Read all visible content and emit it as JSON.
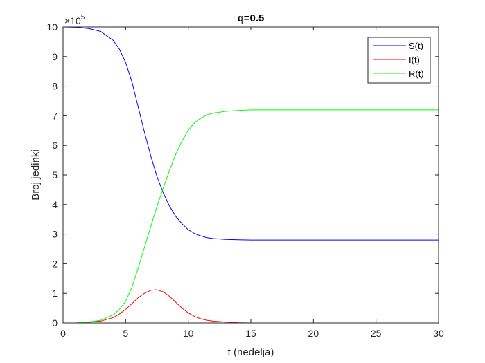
{
  "chart_data": {
    "type": "line",
    "title": "q=0.5",
    "xlabel": "t (nedelja)",
    "ylabel": "Broj jedinki",
    "xlim": [
      0,
      30
    ],
    "ylim": [
      0,
      10
    ],
    "x_ticks": [
      0,
      5,
      10,
      15,
      20,
      25,
      30
    ],
    "y_ticks": [
      0,
      1,
      2,
      3,
      4,
      5,
      6,
      7,
      8,
      9,
      10
    ],
    "y_multiplier_base": "×10",
    "y_multiplier_exponent": "5",
    "grid": false,
    "legend_position": "top-right",
    "x": [
      0,
      1,
      2,
      3,
      4,
      4.5,
      5,
      5.5,
      6,
      6.5,
      7,
      7.5,
      8,
      8.5,
      9,
      9.5,
      10,
      10.5,
      11,
      11.5,
      12,
      13,
      14,
      15,
      16,
      18,
      20,
      25,
      30
    ],
    "series": [
      {
        "name": "S(t)",
        "color": "#0000ff",
        "values": [
          10.0,
          9.99,
          9.95,
          9.85,
          9.55,
          9.25,
          8.8,
          8.15,
          7.3,
          6.45,
          5.65,
          4.95,
          4.4,
          3.95,
          3.6,
          3.35,
          3.15,
          3.02,
          2.94,
          2.88,
          2.85,
          2.82,
          2.81,
          2.8,
          2.8,
          2.8,
          2.8,
          2.8,
          2.8
        ]
      },
      {
        "name": "I(t)",
        "color": "#ff0000",
        "values": [
          0.0,
          0.0,
          0.02,
          0.06,
          0.18,
          0.3,
          0.46,
          0.65,
          0.85,
          1.0,
          1.1,
          1.12,
          1.05,
          0.9,
          0.7,
          0.5,
          0.34,
          0.22,
          0.14,
          0.09,
          0.06,
          0.03,
          0.01,
          0.0,
          0.0,
          0.0,
          0.0,
          0.0,
          0.0
        ]
      },
      {
        "name": "R(t)",
        "color": "#00ff00",
        "values": [
          0.0,
          0.0,
          0.03,
          0.09,
          0.27,
          0.45,
          0.74,
          1.2,
          1.85,
          2.55,
          3.25,
          3.93,
          4.55,
          5.15,
          5.7,
          6.15,
          6.51,
          6.76,
          6.92,
          7.03,
          7.09,
          7.15,
          7.18,
          7.2,
          7.2,
          7.2,
          7.2,
          7.2,
          7.2
        ]
      }
    ]
  }
}
